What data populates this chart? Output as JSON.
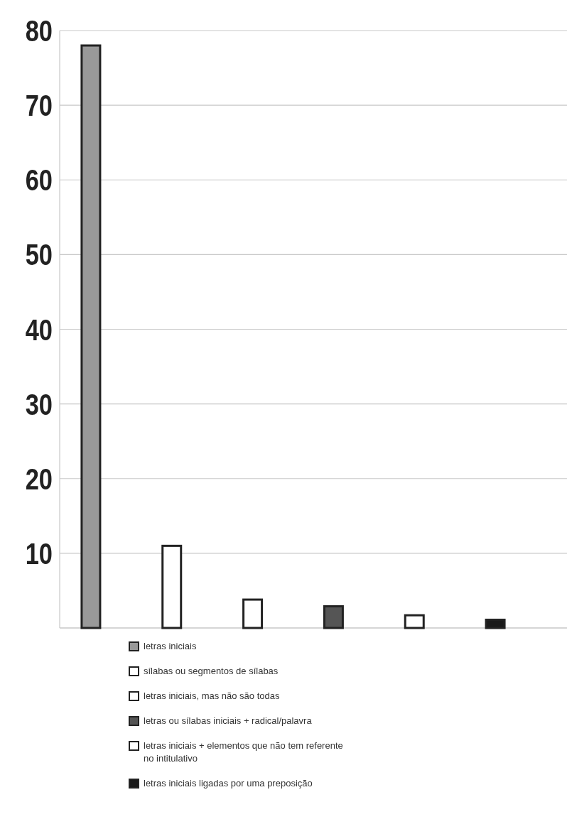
{
  "chart_data": {
    "type": "bar",
    "categories": [
      null,
      null,
      null,
      null,
      null,
      null
    ],
    "series": [
      {
        "name": "letras iniciais",
        "color": "#999999",
        "values": [
          78,
          null,
          null,
          null,
          null,
          null
        ]
      },
      {
        "name": "sílabas ou segmentos de sílabas",
        "color": "#ffffff",
        "values": [
          null,
          11,
          null,
          null,
          null,
          null
        ]
      },
      {
        "name": "letras iniciais, mas não são todas",
        "color": "#ffffff",
        "values": [
          null,
          null,
          3.8,
          null,
          null,
          null
        ]
      },
      {
        "name": "letras ou sílabas iniciais + radical/palavra",
        "color": "#555555",
        "values": [
          null,
          null,
          null,
          2.9,
          null,
          null
        ]
      },
      {
        "name": "letras iniciais + elementos que não tem referente no intitulativo",
        "color": "#ffffff",
        "values": [
          null,
          null,
          null,
          null,
          1.7,
          null
        ]
      },
      {
        "name": "letras iniciais ligadas por uma preposição",
        "color": "#1a1a1a",
        "values": [
          null,
          null,
          null,
          null,
          null,
          1.1
        ]
      }
    ],
    "ylim": [
      0,
      80
    ],
    "yticks": [
      {
        "value": 0,
        "label": null
      },
      10,
      20,
      30,
      40,
      50,
      60,
      70,
      80
    ],
    "grid": "y",
    "legend": "bottom"
  }
}
